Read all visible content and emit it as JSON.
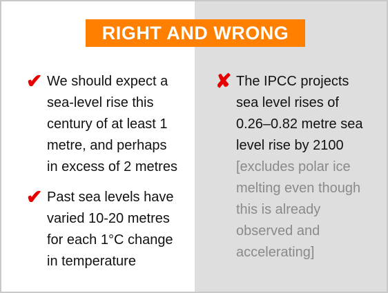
{
  "title": "RIGHT AND WRONG",
  "colors": {
    "accent": "#ff8000",
    "mark": "#e60000",
    "right_panel_bg": "#dedede",
    "muted_text": "#8a8a8a"
  },
  "left": {
    "points": [
      {
        "icon": "check-mark-icon",
        "glyph": "✔",
        "lines": [
          "We should expect a",
          "sea-level rise this",
          "century of at least 1",
          "metre, and perhaps",
          "in excess of 2 metres"
        ]
      },
      {
        "icon": "check-mark-icon",
        "glyph": "✔",
        "lines": [
          "Past sea levels have",
          "varied 10-20 metres",
          "for each 1°C change",
          "in temperature"
        ]
      }
    ]
  },
  "right": {
    "points": [
      {
        "icon": "cross-mark-icon",
        "glyph": "✘",
        "lines": [
          "The IPCC projects",
          "sea level rises of",
          "0.26–0.82 metre sea",
          "level rise by 2100"
        ],
        "muted_lines": [
          "[excludes polar ice",
          "melting even though",
          "this is already",
          "observed and",
          "accelerating]"
        ]
      }
    ]
  }
}
